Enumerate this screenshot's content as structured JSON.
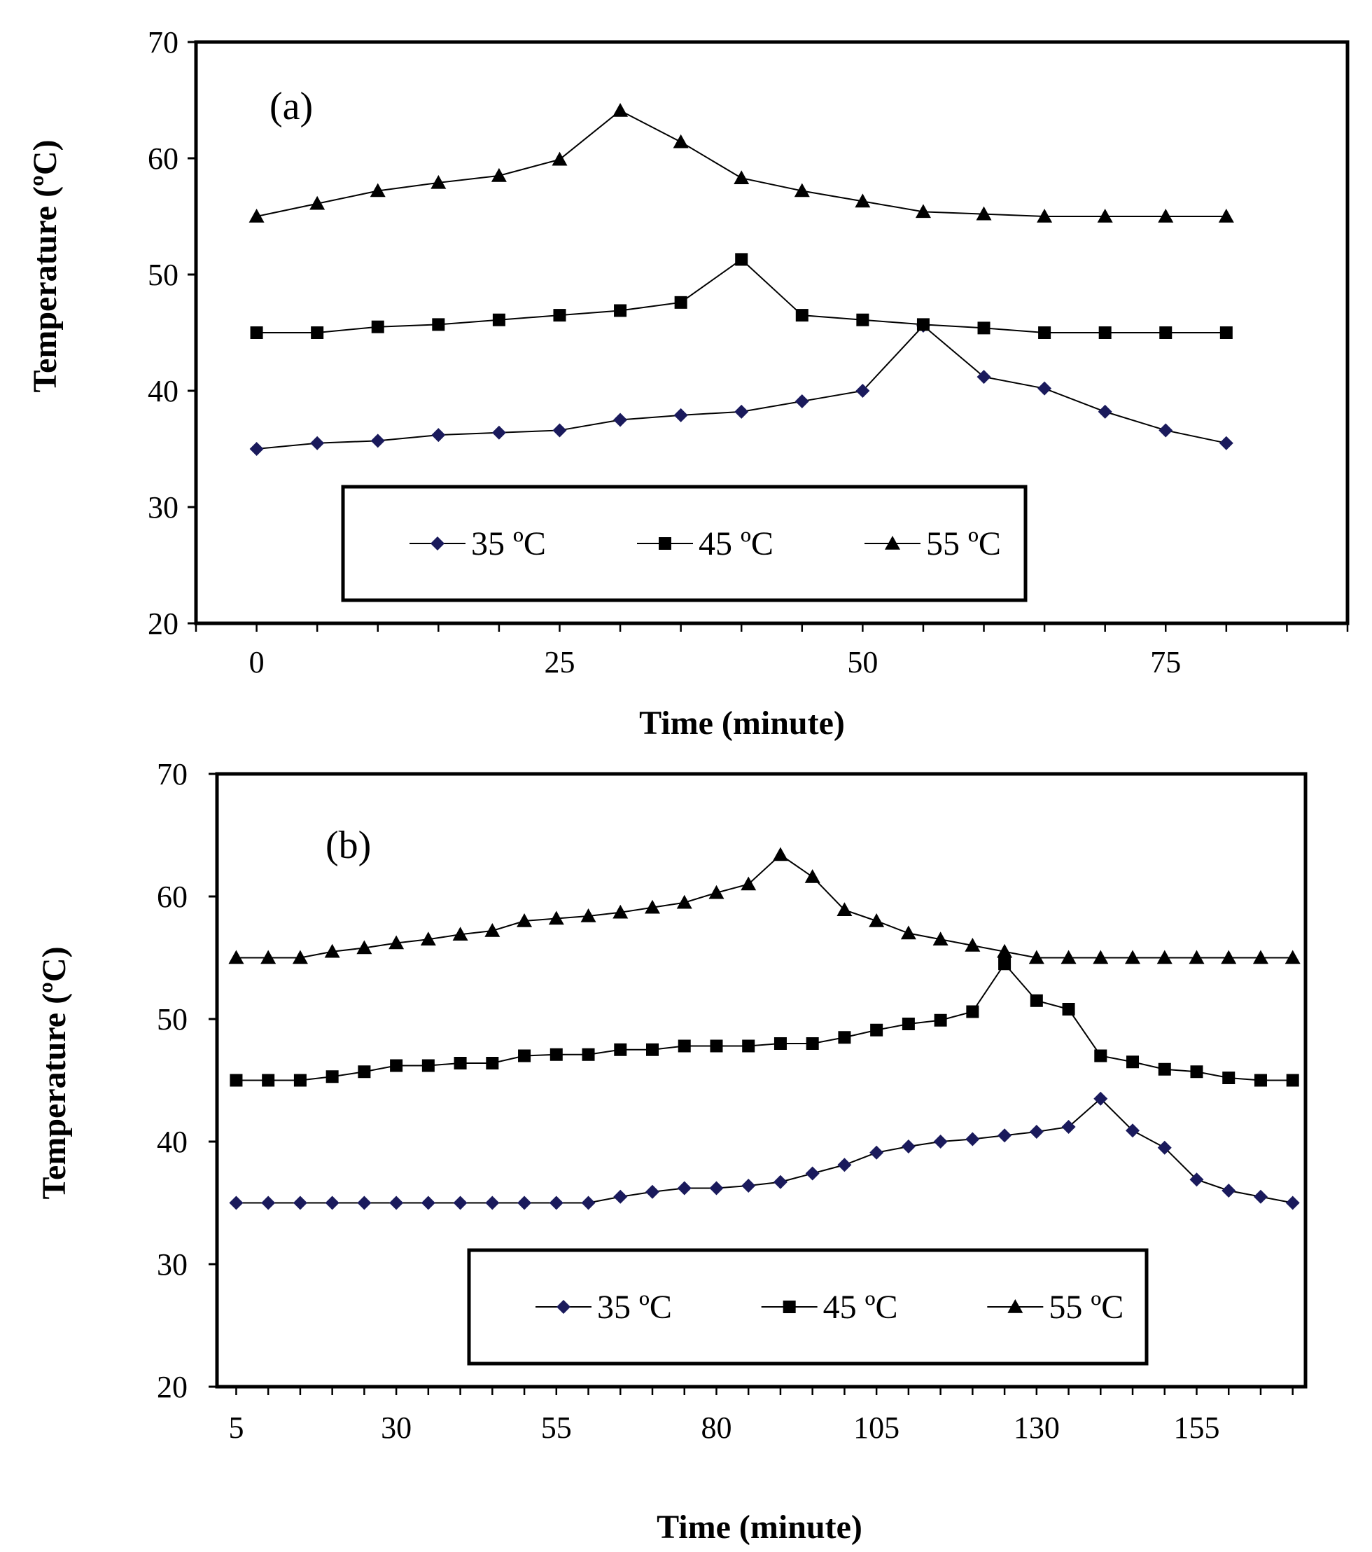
{
  "chart_data": [
    {
      "type": "line",
      "panel_label": "(a)",
      "xlabel": "Time (minute)",
      "ylabel": "Temperature (ºC)",
      "xlim": [
        -5,
        90
      ],
      "ylim": [
        20,
        70
      ],
      "xticks": [
        0,
        25,
        50,
        75
      ],
      "xtick_labels": [
        "0",
        "25",
        "50",
        "75"
      ],
      "yticks": [
        20,
        30,
        40,
        50,
        60,
        70
      ],
      "ytick_labels": [
        "20",
        "30",
        "40",
        "50",
        "60",
        "70"
      ],
      "grid": false,
      "legend_position": "bottom-center",
      "x": [
        0,
        5,
        10,
        15,
        20,
        25,
        30,
        35,
        40,
        45,
        50,
        55,
        60,
        65,
        70,
        75,
        80
      ],
      "series": [
        {
          "name": "35 ºC",
          "marker": "diamond",
          "color": "#1a1a5c",
          "values": [
            35,
            35.5,
            35.7,
            36.2,
            36.4,
            36.6,
            37.5,
            37.9,
            38.2,
            39.1,
            40.0,
            45.6,
            41.2,
            40.2,
            38.2,
            36.6,
            35.5
          ]
        },
        {
          "name": "45 ºC",
          "marker": "square",
          "color": "#000000",
          "values": [
            45,
            45,
            45.5,
            45.7,
            46.1,
            46.5,
            46.9,
            47.6,
            51.3,
            46.5,
            46.1,
            45.7,
            45.4,
            45,
            45,
            45,
            45
          ]
        },
        {
          "name": "55 ºC",
          "marker": "triangle",
          "color": "#000000",
          "values": [
            55,
            56.1,
            57.2,
            57.9,
            58.5,
            59.9,
            64.1,
            61.4,
            58.3,
            57.2,
            56.3,
            55.4,
            55.2,
            55,
            55,
            55,
            55
          ]
        }
      ]
    },
    {
      "type": "line",
      "panel_label": "(b)",
      "xlabel": "Time (minute)",
      "ylabel": "Temperature (ºC)",
      "xlim": [
        2,
        172
      ],
      "ylim": [
        20,
        70
      ],
      "xticks": [
        5,
        30,
        55,
        80,
        105,
        130,
        155
      ],
      "xtick_labels": [
        "5",
        "30",
        "55",
        "80",
        "105",
        "130",
        "155"
      ],
      "yticks": [
        20,
        30,
        40,
        50,
        60,
        70
      ],
      "ytick_labels": [
        "20",
        "30",
        "40",
        "50",
        "60",
        "70"
      ],
      "grid": false,
      "legend_position": "bottom-center",
      "x": [
        5,
        10,
        15,
        20,
        25,
        30,
        35,
        40,
        45,
        50,
        55,
        60,
        65,
        70,
        75,
        80,
        85,
        90,
        95,
        100,
        105,
        110,
        115,
        120,
        125,
        130,
        135,
        140,
        145,
        150,
        155,
        160,
        165,
        170
      ],
      "series": [
        {
          "name": "35 ºC",
          "marker": "diamond",
          "color": "#1a1a5c",
          "values": [
            35,
            35,
            35,
            35,
            35,
            35,
            35,
            35,
            35,
            35,
            35,
            35,
            35.5,
            35.9,
            36.2,
            36.2,
            36.4,
            36.7,
            37.4,
            38.1,
            39.1,
            39.6,
            40,
            40.2,
            40.5,
            40.8,
            41.2,
            43.5,
            40.9,
            39.5,
            36.9,
            36,
            35.5,
            35
          ]
        },
        {
          "name": "45 ºC",
          "marker": "square",
          "color": "#000000",
          "values": [
            45,
            45,
            45,
            45.3,
            45.7,
            46.2,
            46.2,
            46.4,
            46.4,
            47,
            47.1,
            47.1,
            47.5,
            47.5,
            47.8,
            47.8,
            47.8,
            48,
            48,
            48.5,
            49.1,
            49.6,
            49.9,
            50.6,
            54.5,
            51.5,
            50.8,
            47,
            46.5,
            45.9,
            45.7,
            45.2,
            45,
            45
          ]
        },
        {
          "name": "55 ºC",
          "marker": "triangle",
          "color": "#000000",
          "values": [
            55,
            55,
            55,
            55.5,
            55.8,
            56.2,
            56.5,
            56.9,
            57.2,
            58,
            58.2,
            58.4,
            58.7,
            59.1,
            59.5,
            60.3,
            61,
            63.4,
            61.6,
            58.9,
            58,
            57,
            56.5,
            56,
            55.5,
            55,
            55,
            55,
            55,
            55,
            55,
            55,
            55,
            55
          ]
        }
      ]
    }
  ]
}
